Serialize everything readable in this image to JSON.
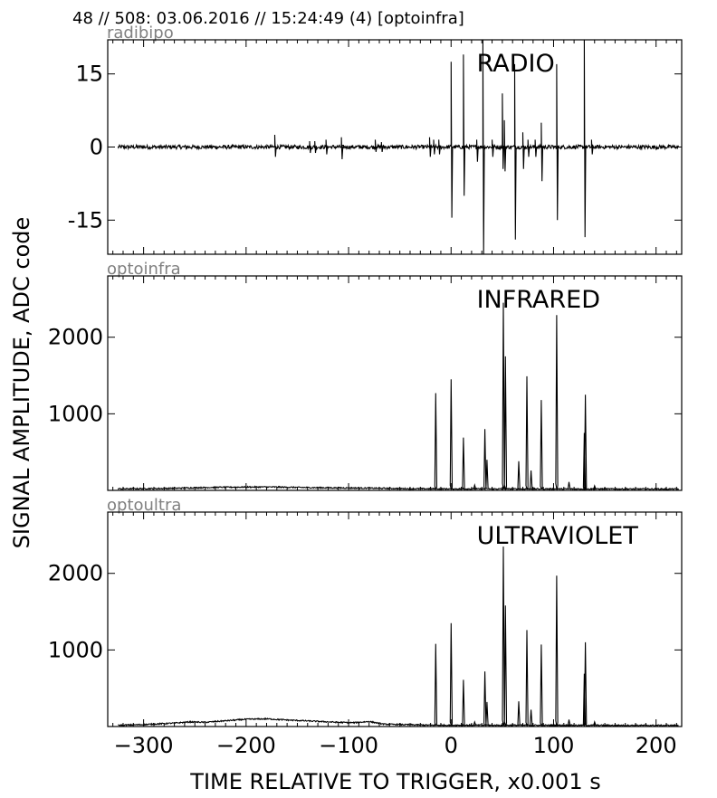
{
  "header": "48 // 508:   03.06.2016 // 15:24:49 (4)  [optoinfra]",
  "ylabel": "SIGNAL AMPLITUDE,  ADC code",
  "xlabel": "TIME RELATIVE TO TRIGGER,   x0.001 s",
  "colors": {
    "line": "#000000",
    "channel_tag": "#808080",
    "frame": "#000000"
  },
  "chart_data": [
    {
      "type": "line",
      "channel": "radibipo",
      "label": "RADIO",
      "xlim": [
        -335,
        225
      ],
      "ylim": [
        -22,
        22
      ],
      "xticks": [
        -300,
        -200,
        -100,
        0,
        100,
        200
      ],
      "yticks": [
        -15,
        0,
        15
      ],
      "ytick_labels": [
        "-15",
        "0",
        "15"
      ],
      "grid": false,
      "baseline": 0,
      "noise_amplitude": 0.4,
      "spikes": [
        {
          "x": -172,
          "y": 2.5,
          "y_min": -2
        },
        {
          "x": -138,
          "y": 1.2,
          "y_min": -1.2
        },
        {
          "x": -133,
          "y": 1.2,
          "y_min": -1.2
        },
        {
          "x": -122,
          "y": 1.5,
          "y_min": -1.5
        },
        {
          "x": -107,
          "y": 2,
          "y_min": -2.5
        },
        {
          "x": -74,
          "y": 1.5,
          "y_min": -1
        },
        {
          "x": -68,
          "y": 1,
          "y_min": -1
        },
        {
          "x": -21,
          "y": 2,
          "y_min": -2
        },
        {
          "x": -17,
          "y": 1.5,
          "y_min": -1.5
        },
        {
          "x": -12,
          "y": 1.5,
          "y_min": -1.5
        },
        {
          "x": 0,
          "y": 17.5,
          "y_min": -14.5
        },
        {
          "x": 12,
          "y": 19,
          "y_min": -10
        },
        {
          "x": 25,
          "y": 1.5,
          "y_min": -3
        },
        {
          "x": 31,
          "y": 23,
          "y_min": -22
        },
        {
          "x": 40,
          "y": 1.5,
          "y_min": -2
        },
        {
          "x": 50,
          "y": 11,
          "y_min": -4.5
        },
        {
          "x": 52,
          "y": 5.5,
          "y_min": -5
        },
        {
          "x": 62,
          "y": 17,
          "y_min": -19
        },
        {
          "x": 70,
          "y": 3,
          "y_min": -4.5
        },
        {
          "x": 75,
          "y": 1.5,
          "y_min": -2
        },
        {
          "x": 82,
          "y": 1.5,
          "y_min": -2
        },
        {
          "x": 88,
          "y": 5,
          "y_min": -7
        },
        {
          "x": 103,
          "y": 17,
          "y_min": -15
        },
        {
          "x": 130,
          "y": 23,
          "y_min": -18.5
        },
        {
          "x": 137,
          "y": 1.5,
          "y_min": -1.5
        }
      ]
    },
    {
      "type": "line",
      "channel": "optoinfra",
      "label": "INFRARED",
      "xlim": [
        -335,
        225
      ],
      "ylim": [
        0,
        2800
      ],
      "xticks": [
        -300,
        -200,
        -100,
        0,
        100,
        200
      ],
      "yticks": [
        1000,
        2000
      ],
      "ytick_labels": [
        "1000",
        "2000"
      ],
      "grid": false,
      "baseline": 20,
      "noise_amplitude": 8,
      "background": [
        {
          "x": -330,
          "y": 20
        },
        {
          "x": -280,
          "y": 25
        },
        {
          "x": -230,
          "y": 40
        },
        {
          "x": -180,
          "y": 45
        },
        {
          "x": -130,
          "y": 35
        },
        {
          "x": -85,
          "y": 30
        },
        {
          "x": -40,
          "y": 22
        },
        {
          "x": 0,
          "y": 20
        },
        {
          "x": 220,
          "y": 18
        }
      ],
      "spikes": [
        {
          "x": -15,
          "y": 1270
        },
        {
          "x": 0,
          "y": 1450
        },
        {
          "x": 12,
          "y": 690
        },
        {
          "x": 23,
          "y": 70
        },
        {
          "x": 33,
          "y": 800
        },
        {
          "x": 35,
          "y": 400
        },
        {
          "x": 51,
          "y": 2450
        },
        {
          "x": 53,
          "y": 1750
        },
        {
          "x": 66,
          "y": 380
        },
        {
          "x": 74,
          "y": 1490
        },
        {
          "x": 78,
          "y": 260
        },
        {
          "x": 88,
          "y": 1180
        },
        {
          "x": 103,
          "y": 2290
        },
        {
          "x": 115,
          "y": 110
        },
        {
          "x": 130,
          "y": 750
        },
        {
          "x": 131,
          "y": 1250
        },
        {
          "x": 140,
          "y": 60
        }
      ]
    },
    {
      "type": "line",
      "channel": "optoultra",
      "label": "ULTRAVIOLET",
      "xlim": [
        -335,
        225
      ],
      "ylim": [
        0,
        2800
      ],
      "xticks": [
        -300,
        -200,
        -100,
        0,
        100,
        200
      ],
      "xtick_labels": [
        "−300",
        "−200",
        "−100",
        "0",
        "100",
        "200"
      ],
      "yticks": [
        1000,
        2000
      ],
      "ytick_labels": [
        "1000",
        "2000"
      ],
      "grid": false,
      "baseline": 15,
      "noise_amplitude": 8,
      "background": [
        {
          "x": -330,
          "y": 15
        },
        {
          "x": -300,
          "y": 25
        },
        {
          "x": -270,
          "y": 45
        },
        {
          "x": -255,
          "y": 60
        },
        {
          "x": -240,
          "y": 55
        },
        {
          "x": -200,
          "y": 95
        },
        {
          "x": -180,
          "y": 100
        },
        {
          "x": -160,
          "y": 85
        },
        {
          "x": -110,
          "y": 55
        },
        {
          "x": -95,
          "y": 50
        },
        {
          "x": -80,
          "y": 65
        },
        {
          "x": -65,
          "y": 30
        },
        {
          "x": -20,
          "y": 18
        },
        {
          "x": 220,
          "y": 15
        }
      ],
      "spikes": [
        {
          "x": -15,
          "y": 1080
        },
        {
          "x": 0,
          "y": 1350
        },
        {
          "x": 12,
          "y": 610
        },
        {
          "x": 23,
          "y": 60
        },
        {
          "x": 33,
          "y": 720
        },
        {
          "x": 35,
          "y": 320
        },
        {
          "x": 51,
          "y": 2350
        },
        {
          "x": 53,
          "y": 1580
        },
        {
          "x": 66,
          "y": 330
        },
        {
          "x": 74,
          "y": 1260
        },
        {
          "x": 78,
          "y": 220
        },
        {
          "x": 88,
          "y": 1070
        },
        {
          "x": 103,
          "y": 1970
        },
        {
          "x": 115,
          "y": 90
        },
        {
          "x": 130,
          "y": 690
        },
        {
          "x": 131,
          "y": 1100
        },
        {
          "x": 140,
          "y": 60
        }
      ]
    }
  ]
}
